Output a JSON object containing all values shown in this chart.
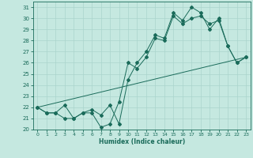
{
  "xlabel": "Humidex (Indice chaleur)",
  "xlim": [
    -0.5,
    23.5
  ],
  "ylim": [
    20,
    31.5
  ],
  "yticks": [
    20,
    21,
    22,
    23,
    24,
    25,
    26,
    27,
    28,
    29,
    30,
    31
  ],
  "xticks": [
    0,
    1,
    2,
    3,
    4,
    5,
    6,
    7,
    8,
    9,
    10,
    11,
    12,
    13,
    14,
    15,
    16,
    17,
    18,
    19,
    20,
    21,
    22,
    23
  ],
  "bg_color": "#c5e8e0",
  "grid_color": "#aad4cc",
  "line_color": "#1a6b5a",
  "line1_x": [
    0,
    1,
    2,
    3,
    4,
    5,
    6,
    7,
    8,
    9,
    10,
    11,
    12,
    13,
    14,
    15,
    16,
    17,
    18,
    19,
    20,
    21,
    22,
    23
  ],
  "line1_y": [
    22.0,
    21.5,
    21.5,
    21.0,
    21.0,
    21.5,
    21.5,
    20.2,
    20.5,
    22.5,
    26.0,
    25.5,
    26.5,
    28.2,
    28.0,
    30.2,
    29.5,
    30.0,
    30.2,
    29.5,
    29.8,
    27.5,
    26.0,
    26.5
  ],
  "line2_x": [
    0,
    1,
    2,
    3,
    4,
    5,
    6,
    7,
    8,
    9,
    10,
    11,
    12,
    13,
    14,
    15,
    16,
    17,
    18,
    19,
    20,
    21,
    22,
    23
  ],
  "line2_y": [
    22.0,
    21.5,
    21.5,
    22.2,
    21.0,
    21.5,
    21.8,
    21.3,
    22.2,
    20.5,
    24.5,
    26.0,
    27.0,
    28.5,
    28.2,
    30.5,
    29.8,
    31.0,
    30.5,
    29.0,
    30.0,
    27.5,
    26.0,
    26.5
  ],
  "line3_x": [
    0,
    23
  ],
  "line3_y": [
    22.0,
    26.5
  ]
}
